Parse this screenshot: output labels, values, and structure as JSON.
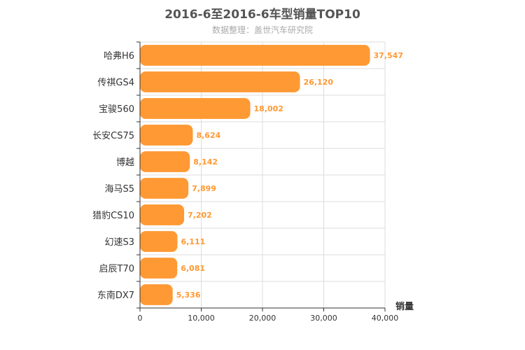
{
  "chart_data": {
    "type": "bar",
    "orientation": "horizontal",
    "title": "2016-6至2016-6车型销量TOP10",
    "subtitle": "数据整理：盖世汽车研究院",
    "xlabel": "销量",
    "ylabel": "",
    "xlim": [
      0,
      40000
    ],
    "xticks": [
      "0",
      "10,000",
      "20,000",
      "30,000",
      "40,000"
    ],
    "grid": true,
    "legend": "none",
    "bar_color": "#ff9933",
    "categories": [
      "哈弗H6",
      "传祺GS4",
      "宝骏560",
      "长安CS75",
      "博越",
      "海马S5",
      "猎豹CS10",
      "幻速S3",
      "启辰T70",
      "东南DX7"
    ],
    "values": [
      37547,
      26120,
      18002,
      8624,
      8142,
      7899,
      7202,
      6111,
      6081,
      5336
    ],
    "value_labels": [
      "37,547",
      "26,120",
      "18,002",
      "8,624",
      "8,142",
      "7,899",
      "7,202",
      "6,111",
      "6,081",
      "5,336"
    ]
  }
}
